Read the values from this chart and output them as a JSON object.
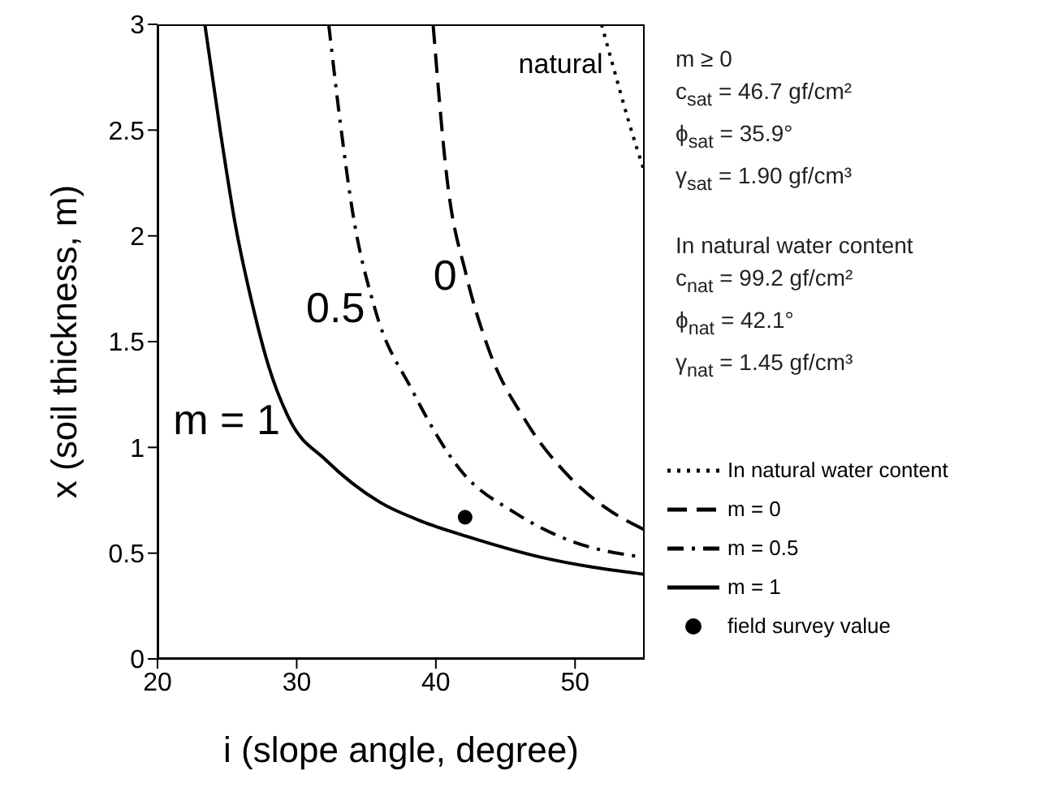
{
  "chart_data": {
    "type": "line",
    "xlabel": "i (slope angle, degree)",
    "ylabel": "x (soil thickness, m)",
    "xlim": [
      20,
      55
    ],
    "xticks": [
      20,
      30,
      40,
      50
    ],
    "ylim": [
      0,
      3
    ],
    "yticks": [
      0,
      0.5,
      1,
      1.5,
      2,
      2.5,
      3
    ],
    "legend": "right",
    "marker": "none",
    "series": [
      {
        "name": "In natural water content",
        "color": "#000000",
        "line_style": "dotted",
        "x": [
          51.9,
          52.7,
          53.9,
          55
        ],
        "values": [
          3,
          2.81,
          2.53,
          2.3
        ]
      },
      {
        "name": "m =  0",
        "color": "#000000",
        "line_style": "dashed",
        "x": [
          39.8,
          40.8,
          42.2,
          43.7,
          46.5,
          49.6,
          52.3,
          55
        ],
        "values": [
          3,
          2.27,
          1.81,
          1.48,
          1.12,
          0.86,
          0.71,
          0.61
        ]
      },
      {
        "name": "m =  0.5",
        "color": "#000000",
        "line_style": "dashdot",
        "x": [
          32.3,
          33.2,
          34,
          35.6,
          38.3,
          41.8,
          45.7,
          49.6,
          55
        ],
        "values": [
          3,
          2.5,
          2.12,
          1.66,
          1.27,
          0.89,
          0.69,
          0.56,
          0.48
        ]
      },
      {
        "name": "m =  1",
        "color": "#000000",
        "line_style": "solid",
        "x": [
          23.4,
          24.5,
          25.6,
          26.8,
          28,
          29.5,
          32.1,
          36,
          39,
          42.2,
          47.6,
          55
        ],
        "values": [
          3,
          2.5,
          2.05,
          1.68,
          1.38,
          1.13,
          0.94,
          0.74,
          0.65,
          0.58,
          0.48,
          0.4
        ]
      },
      {
        "name": "field survey value",
        "type": "scatter",
        "marker": "circle",
        "color": "#000000",
        "x": [
          42.1
        ],
        "values": [
          0.67
        ]
      }
    ],
    "annotations": [
      {
        "text": "natural",
        "x": 52.7,
        "y": 2.81
      },
      {
        "text": "0",
        "x": 42.2,
        "y": 1.81
      },
      {
        "text": "0.5",
        "x": 35.6,
        "y": 1.66
      },
      {
        "text": "m = 1",
        "x": 29.5,
        "y": 1.13
      },
      "m ≥ 0",
      "c$_{sat}$ = 46.7 gf/cm²",
      "ϕ$_{sat}$ = 35.9°",
      "γ$_{sat}$ = 1.90 gf/cm³",
      "In natural water content",
      "c$_{nat}$ = 99.2 gf/cm²",
      "ϕ$_{nat}$ = 42.1°",
      "γ$_{nat}$ = 1.45 gf/cm³"
    ]
  }
}
